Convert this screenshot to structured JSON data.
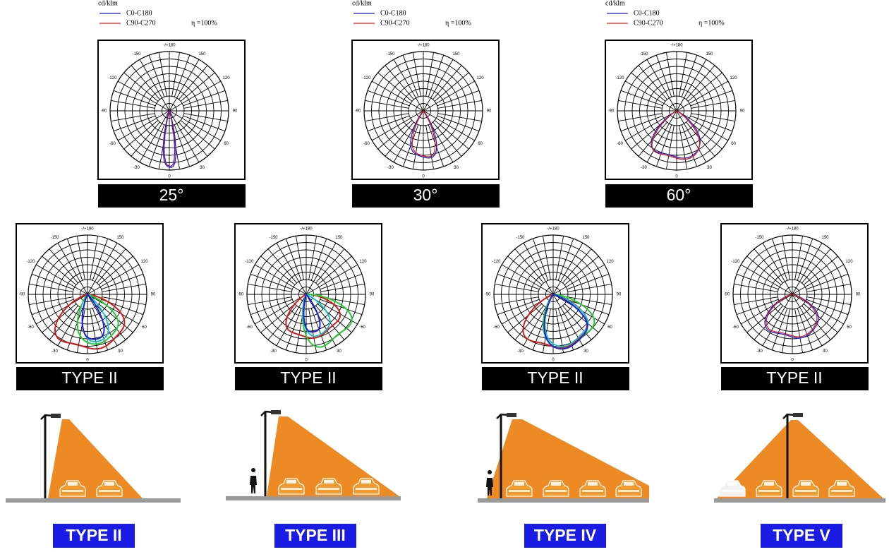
{
  "top_diagrams": [
    {
      "legend": {
        "unit": "cd/klm",
        "series": [
          "C0-C180",
          "C90-C270"
        ],
        "efficiency": "η =100%"
      },
      "caption": "25°"
    },
    {
      "legend": {
        "unit": "cd/klm",
        "series": [
          "C0-C180",
          "C90-C270"
        ],
        "efficiency": "η =100%"
      },
      "caption": "30°"
    },
    {
      "legend": {
        "unit": "cd/klm",
        "series": [
          "C0-C180",
          "C90-C270"
        ],
        "efficiency": "η =100%"
      },
      "caption": "60°"
    }
  ],
  "middle_diagrams": [
    {
      "caption": "TYPE II"
    },
    {
      "caption": "TYPE II"
    },
    {
      "caption": "TYPE II"
    },
    {
      "caption": "TYPE II"
    }
  ],
  "scenes": [
    {
      "label": "TYPE II"
    },
    {
      "label": "TYPE III"
    },
    {
      "label": "TYPE IV"
    },
    {
      "label": "TYPE V"
    }
  ],
  "polar_angle_labels": [
    "-/+180",
    "150",
    "120",
    "90",
    "60",
    "30",
    "0",
    "-30",
    "-60",
    "-90",
    "-120",
    "-150"
  ]
}
